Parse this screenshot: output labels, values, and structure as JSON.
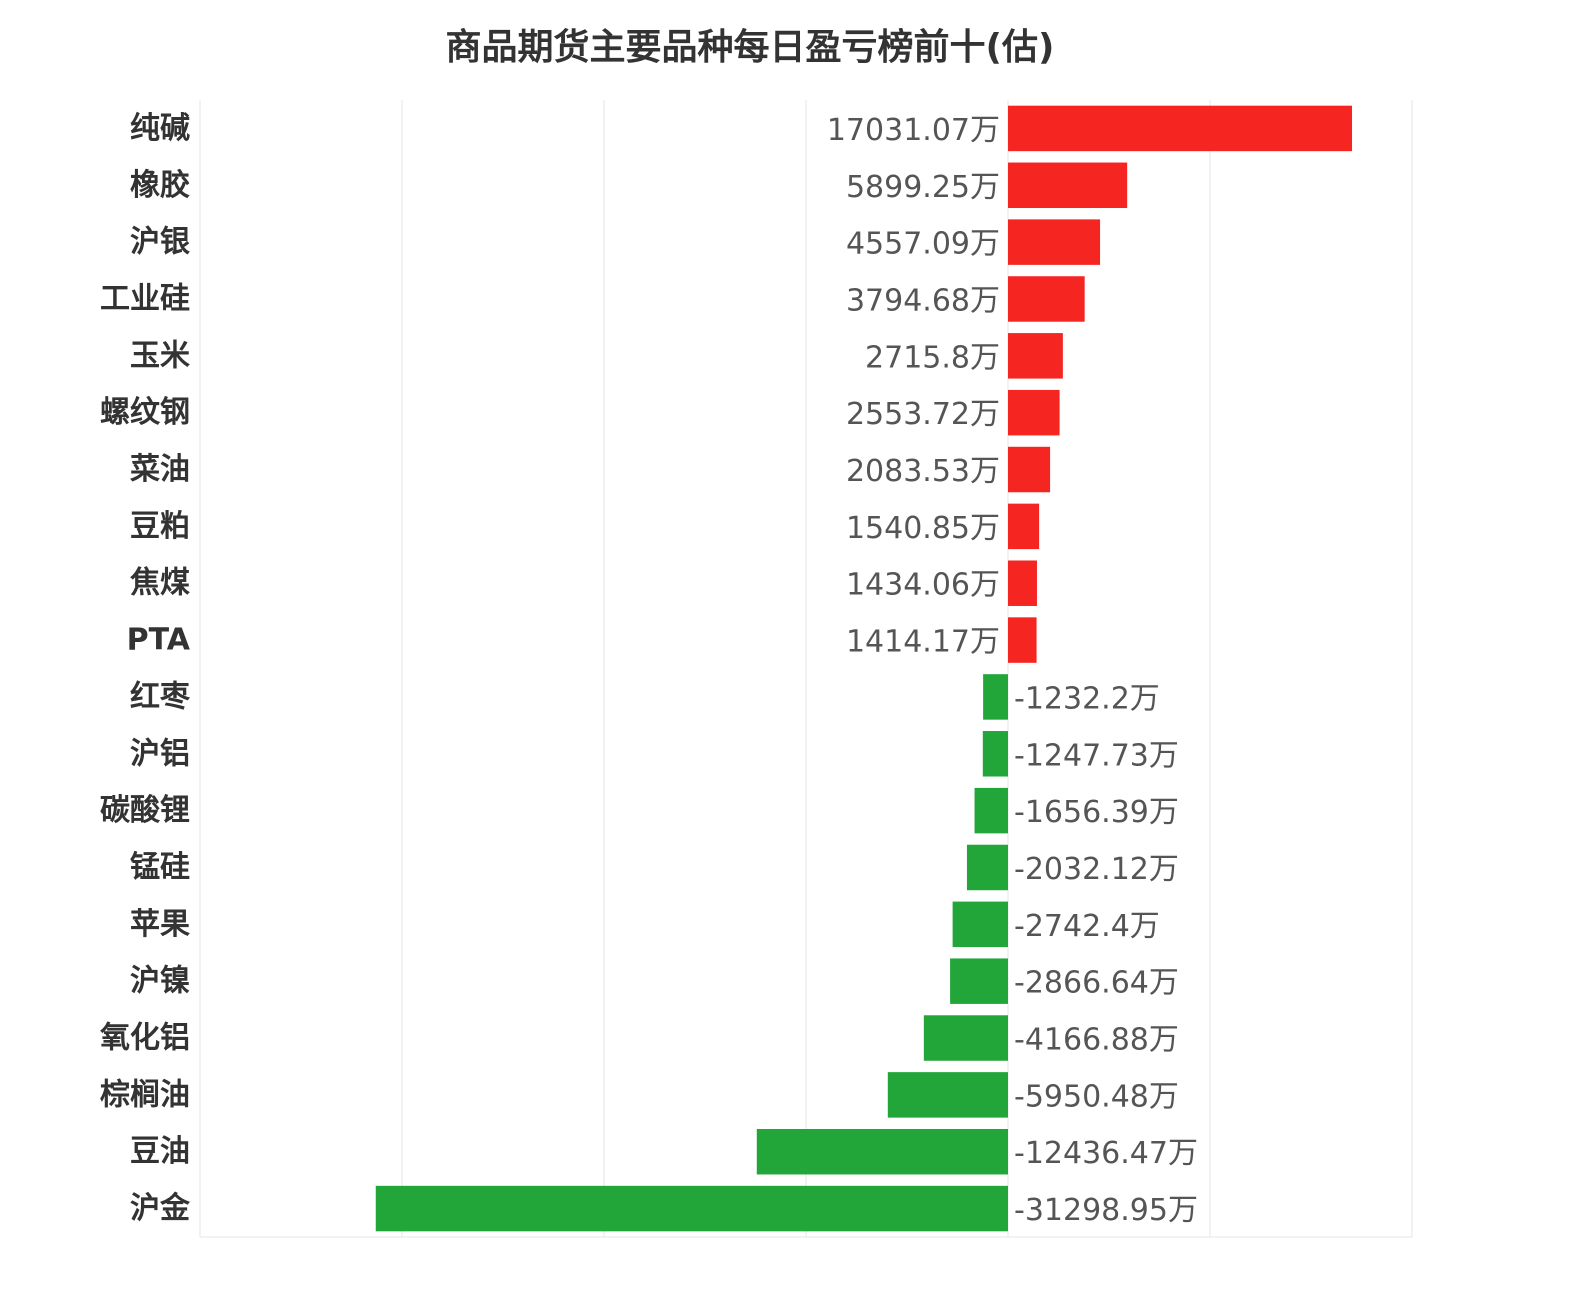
{
  "chart_data": {
    "type": "bar",
    "orientation": "horizontal",
    "title": "商品期货主要品种每日盈亏榜前十(估)",
    "unit": "万",
    "categories": [
      "纯碱",
      "橡胶",
      "沪银",
      "工业硅",
      "玉米",
      "螺纹钢",
      "菜油",
      "豆粕",
      "焦煤",
      "PTA",
      "红枣",
      "沪铝",
      "碳酸锂",
      "锰硅",
      "苹果",
      "沪镍",
      "氧化铝",
      "棕榈油",
      "豆油",
      "沪金"
    ],
    "values": [
      17031.07,
      5899.25,
      4557.09,
      3794.68,
      2715.8,
      2553.72,
      2083.53,
      1540.85,
      1434.06,
      1414.17,
      -1232.2,
      -1247.73,
      -1656.39,
      -2032.12,
      -2742.4,
      -2866.64,
      -4166.88,
      -5950.48,
      -12436.47,
      -31298.95
    ],
    "value_labels": [
      "17031.07万",
      "5899.25万",
      "4557.09万",
      "3794.68万",
      "2715.8万",
      "2553.72万",
      "2083.53万",
      "1540.85万",
      "1434.06万",
      "1414.17万",
      "-1232.2万",
      "-1247.73万",
      "-1656.39万",
      "-2032.12万",
      "-2742.4万",
      "-2866.64万",
      "-4166.88万",
      "-5950.48万",
      "-12436.47万",
      "-31298.95万"
    ],
    "xlim": [
      -40000,
      20000
    ],
    "grid": true,
    "colors": {
      "positive": "#f52522",
      "negative": "#22a63a",
      "grid": "#e6e6e6"
    }
  }
}
